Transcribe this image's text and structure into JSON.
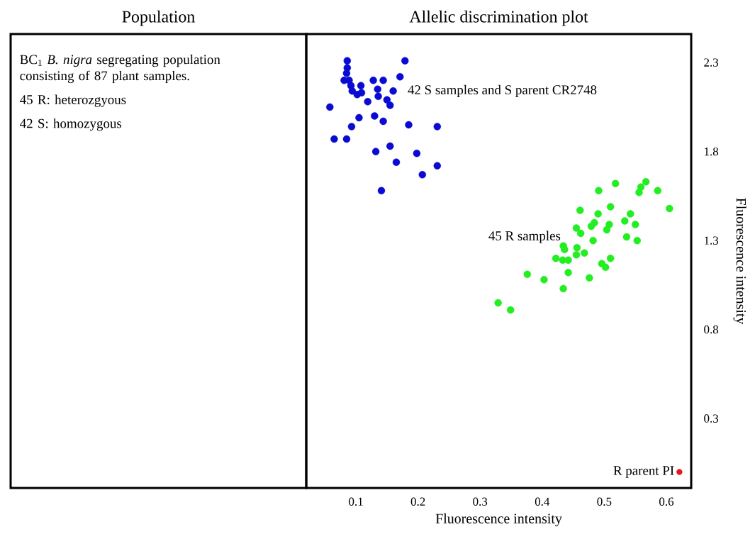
{
  "chart_data": [
    {
      "type": "other",
      "title": "Population",
      "annotations": [
        "BC$_{1}$ *B. nigra* segregating population consisting of 87 plant samples.",
        "45 R: heterozgyous",
        "42 S: homozygous"
      ]
    },
    {
      "type": "scatter",
      "title": "Allelic discrimination plot",
      "xlabel": "Fluorescence intensity",
      "ylabel": "Fluorescence intensity",
      "xlim": [
        0.02,
        0.64
      ],
      "ylim": [
        -0.09,
        2.46
      ],
      "xticks": [
        0.1,
        0.2,
        0.3,
        0.4,
        0.5,
        0.6
      ],
      "yticks": [
        0.3,
        0.8,
        1.3,
        1.8,
        2.3
      ],
      "marker": "circle",
      "series": [
        {
          "name": "42 S samples and S parent CR2748",
          "color": "#0a0ad2",
          "x": [
            0.086,
            0.179,
            0.086,
            0.085,
            0.171,
            0.081,
            0.089,
            0.128,
            0.144,
            0.092,
            0.108,
            0.094,
            0.135,
            0.16,
            0.102,
            0.109,
            0.136,
            0.119,
            0.15,
            0.155,
            0.058,
            0.105,
            0.13,
            0.144,
            0.185,
            0.231,
            0.093,
            0.065,
            0.085,
            0.155,
            0.132,
            0.198,
            0.165,
            0.231,
            0.207,
            0.141
          ],
          "values": [
            2.31,
            2.31,
            2.27,
            2.24,
            2.22,
            2.2,
            2.2,
            2.2,
            2.2,
            2.17,
            2.17,
            2.14,
            2.15,
            2.14,
            2.12,
            2.13,
            2.11,
            2.08,
            2.09,
            2.06,
            2.05,
            1.99,
            2.0,
            1.97,
            1.95,
            1.94,
            1.94,
            1.87,
            1.87,
            1.83,
            1.8,
            1.79,
            1.74,
            1.72,
            1.67,
            1.58
          ]
        },
        {
          "name": "45 R samples",
          "color": "#22ee22",
          "x": [
            0.518,
            0.567,
            0.559,
            0.556,
            0.586,
            0.491,
            0.605,
            0.51,
            0.461,
            0.49,
            0.542,
            0.533,
            0.55,
            0.484,
            0.479,
            0.508,
            0.504,
            0.455,
            0.462,
            0.536,
            0.553,
            0.482,
            0.434,
            0.436,
            0.456,
            0.468,
            0.455,
            0.422,
            0.433,
            0.442,
            0.51,
            0.496,
            0.502,
            0.442,
            0.376,
            0.476,
            0.403,
            0.434,
            0.329,
            0.349
          ],
          "values": [
            1.62,
            1.63,
            1.6,
            1.57,
            1.58,
            1.58,
            1.48,
            1.49,
            1.47,
            1.45,
            1.45,
            1.41,
            1.39,
            1.4,
            1.38,
            1.39,
            1.36,
            1.37,
            1.34,
            1.32,
            1.3,
            1.3,
            1.27,
            1.25,
            1.26,
            1.23,
            1.22,
            1.2,
            1.19,
            1.19,
            1.2,
            1.17,
            1.15,
            1.12,
            1.11,
            1.09,
            1.08,
            1.03,
            0.95,
            0.91
          ]
        },
        {
          "name": "R parent PI",
          "color": "#e8141e",
          "x": [
            0.621
          ],
          "values": [
            0.0
          ]
        }
      ]
    }
  ]
}
